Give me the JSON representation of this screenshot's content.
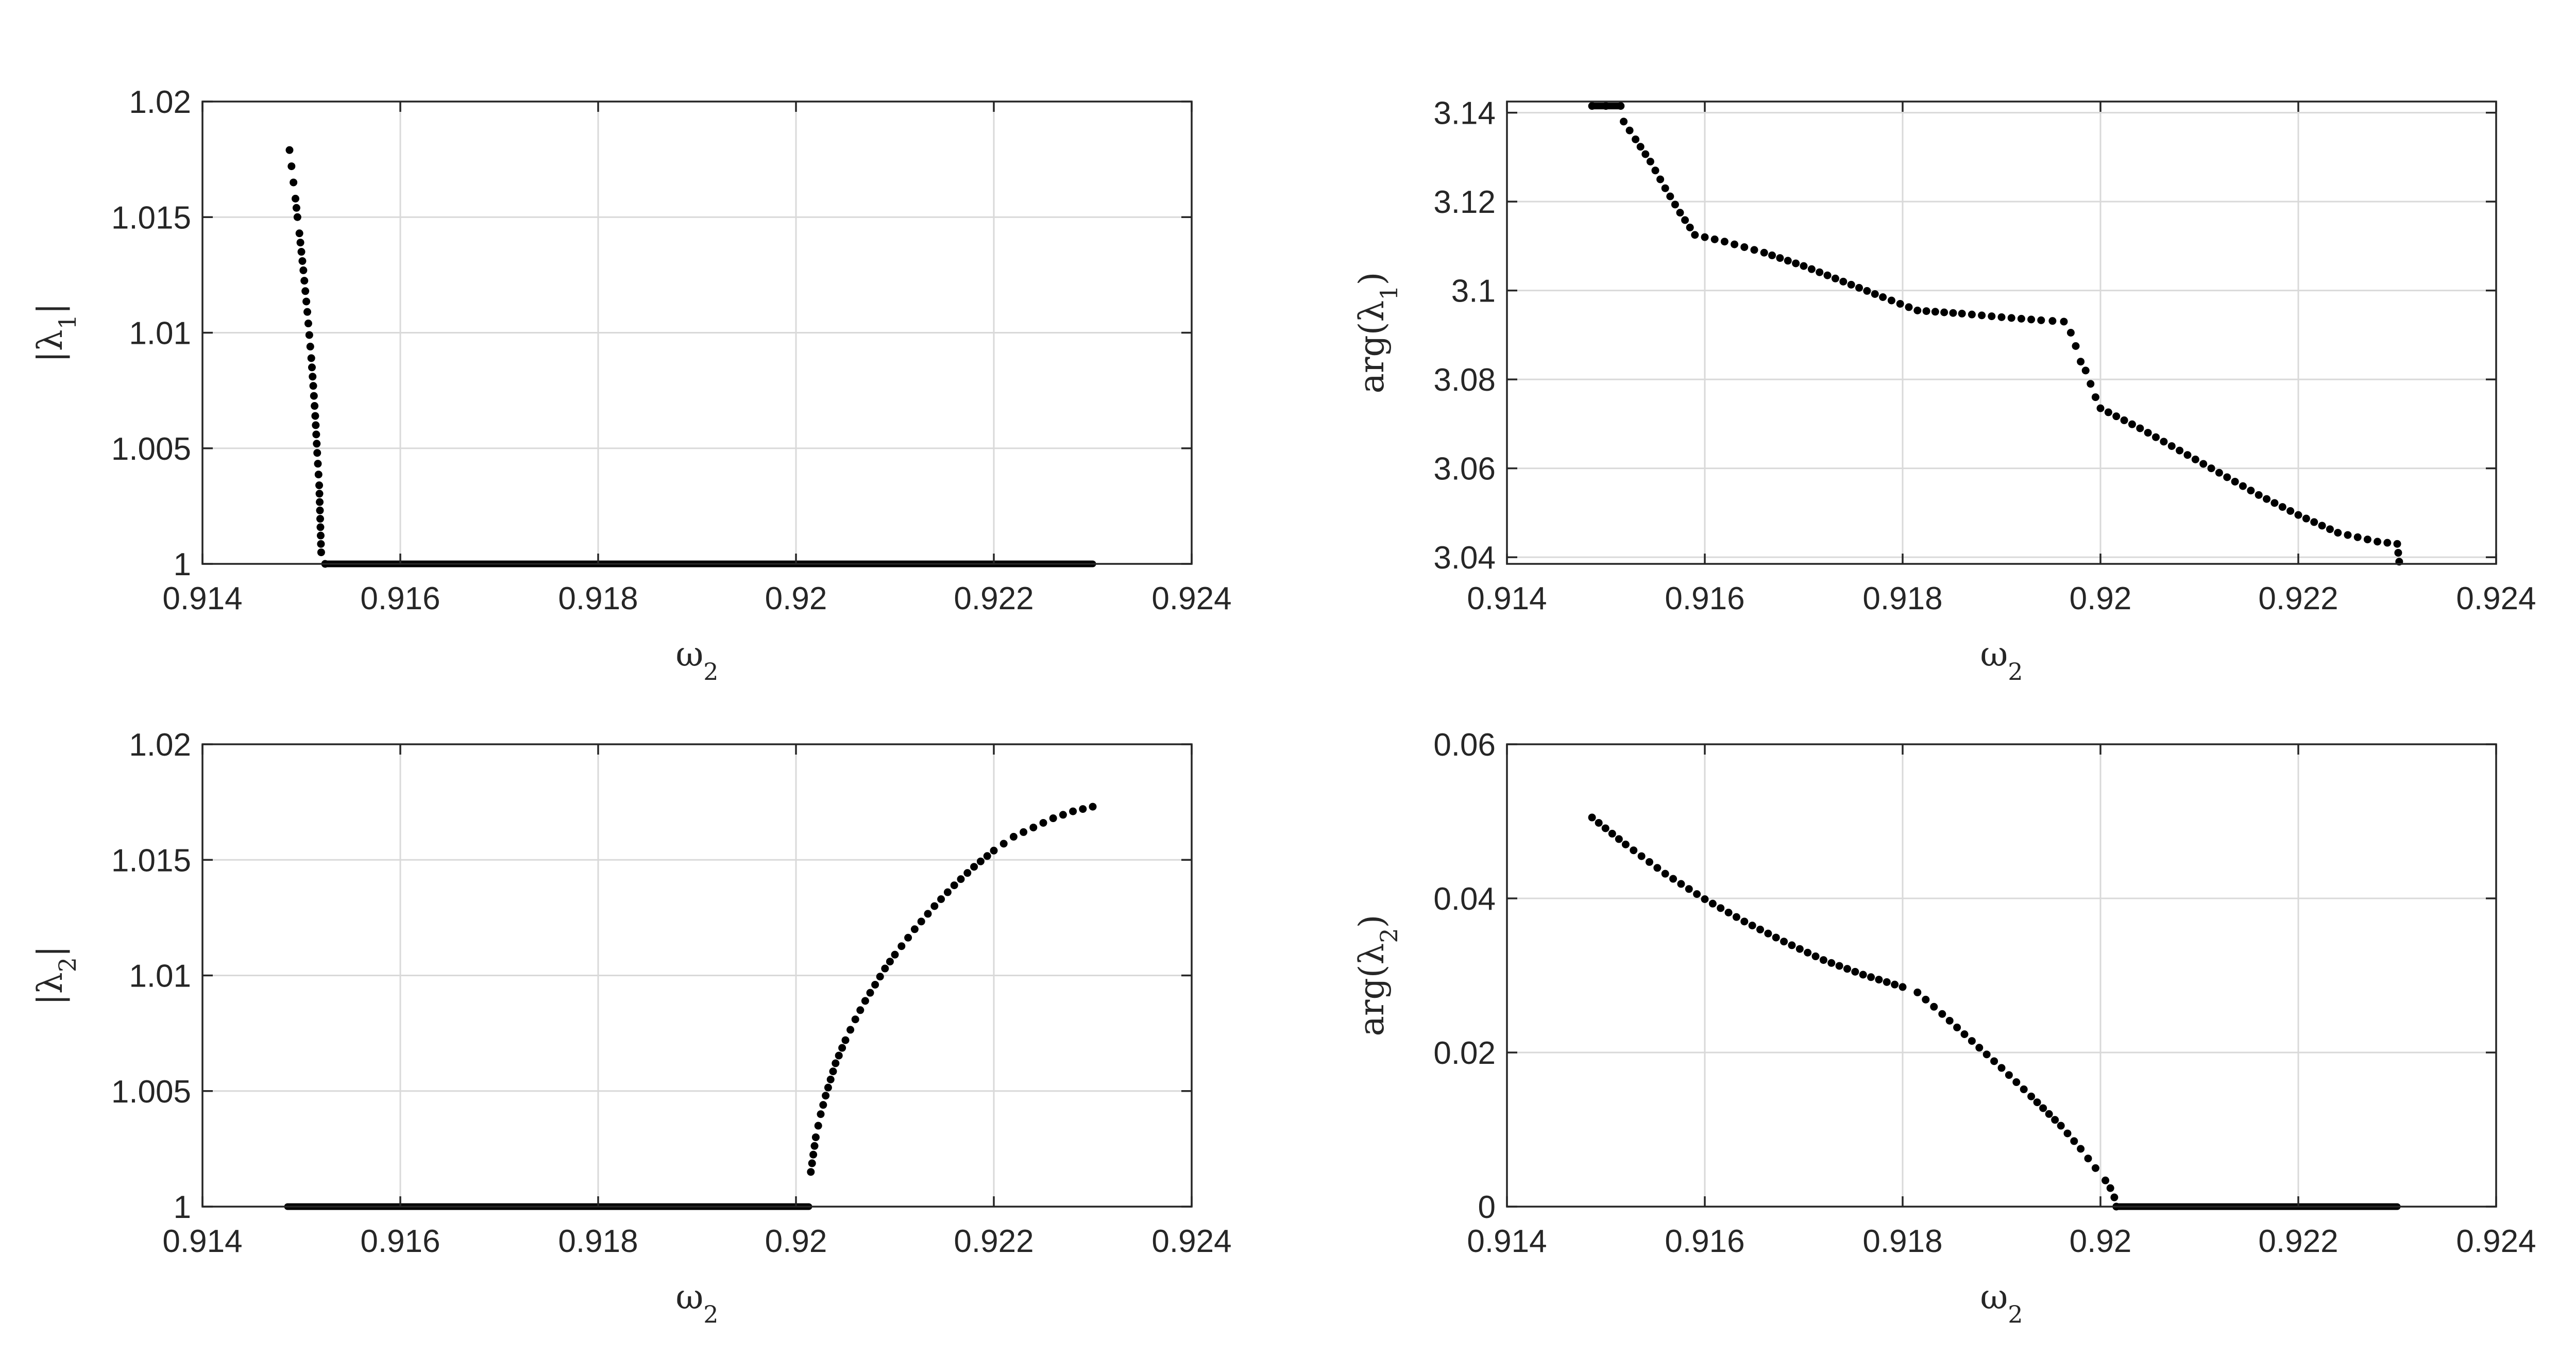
{
  "figure": {
    "marker_color": "#000000",
    "grid": true
  },
  "chart_data": [
    {
      "id": "mag1",
      "type": "scatter",
      "title": "",
      "xlabel": "ω",
      "xlabel_sub": "2",
      "ylabel": "|λ1|",
      "ylabel_parts": [
        "|λ",
        "1",
        "|"
      ],
      "xlim": [
        0.914,
        0.924
      ],
      "ylim": [
        1,
        1.02
      ],
      "xticks": [
        0.914,
        0.916,
        0.918,
        0.92,
        0.922,
        0.924
      ],
      "xtick_labels": [
        "0.914",
        "0.916",
        "0.918",
        "0.92",
        "0.922",
        "0.924"
      ],
      "yticks": [
        1,
        1.005,
        1.01,
        1.015,
        1.02
      ],
      "ytick_labels": [
        "1",
        "1.005",
        "1.01",
        "1.015",
        "1.02"
      ],
      "series": [
        {
          "x": [
            0.91488,
            0.9149,
            0.91492,
            0.91494,
            0.91496,
            0.91498,
            0.915,
            0.91502,
            0.91504,
            0.91506,
            0.91508,
            0.9151,
            0.91512,
            0.91514,
            0.91516,
            0.91518,
            0.9152,
            0.91524
          ],
          "y": [
            1.0179,
            1.0172,
            1.0165,
            1.0158,
            1.015,
            1.0143,
            1.0135,
            1.0127,
            1.0118,
            1.0109,
            1.0099,
            1.0089,
            1.0077,
            1.0064,
            1.0048,
            1.0034,
            1.0005,
            1.0
          ],
          "segments": [
            {
              "x_start": 0.91524,
              "x_end": 0.923,
              "y_start": 1.0,
              "y_end": 1.0
            }
          ]
        }
      ]
    },
    {
      "id": "arg1",
      "type": "scatter",
      "title": "",
      "xlabel": "ω",
      "xlabel_sub": "2",
      "ylabel": "arg(λ1)",
      "ylabel_parts": [
        "arg(λ",
        "1",
        ")"
      ],
      "xlim": [
        0.914,
        0.924
      ],
      "ylim": [
        3.0385,
        3.1425
      ],
      "xticks": [
        0.914,
        0.916,
        0.918,
        0.92,
        0.922,
        0.924
      ],
      "xtick_labels": [
        "0.914",
        "0.916",
        "0.918",
        "0.92",
        "0.922",
        "0.924"
      ],
      "yticks": [
        3.04,
        3.06,
        3.08,
        3.1,
        3.12,
        3.14
      ],
      "ytick_labels": [
        "3.04",
        "3.06",
        "3.08",
        "3.1",
        "3.12",
        "3.14"
      ],
      "series": [
        {
          "x": [
            0.91486,
            0.915,
            0.91515,
            0.91518,
            0.9153,
            0.91545,
            0.9156,
            0.91575,
            0.9159,
            0.9162,
            0.9166,
            0.917,
            0.9174,
            0.9178,
            0.91815,
            0.9186,
            0.919,
            0.9194,
            0.91963,
            0.9197,
            0.91975,
            0.9198,
            0.91985,
            0.9199,
            0.91995,
            0.92,
            0.9204,
            0.9208,
            0.9212,
            0.9216,
            0.922,
            0.9224,
            0.9228,
            0.923,
            0.92302
          ],
          "y": [
            3.1415,
            3.1415,
            3.1415,
            3.138,
            3.134,
            3.129,
            3.123,
            3.1175,
            3.1125,
            3.111,
            3.1085,
            3.1055,
            3.102,
            3.0985,
            3.0955,
            3.0948,
            3.094,
            3.0933,
            3.093,
            3.0905,
            3.0875,
            3.084,
            3.082,
            3.079,
            3.076,
            3.0735,
            3.069,
            3.064,
            3.059,
            3.054,
            3.0495,
            3.0455,
            3.0435,
            3.043,
            3.039
          ],
          "segments": [
            {
              "x_start": 0.91486,
              "x_end": 0.91515,
              "y_start": 3.1415,
              "y_end": 3.1415
            }
          ]
        }
      ]
    },
    {
      "id": "mag2",
      "type": "scatter",
      "title": "",
      "xlabel": "ω",
      "xlabel_sub": "2",
      "ylabel": "|λ2|",
      "ylabel_parts": [
        "|λ",
        "2",
        "|"
      ],
      "xlim": [
        0.914,
        0.924
      ],
      "ylim": [
        1,
        1.02
      ],
      "xticks": [
        0.914,
        0.916,
        0.918,
        0.92,
        0.922,
        0.924
      ],
      "xtick_labels": [
        "0.914",
        "0.916",
        "0.918",
        "0.92",
        "0.922",
        "0.924"
      ],
      "yticks": [
        1,
        1.005,
        1.01,
        1.015,
        1.02
      ],
      "ytick_labels": [
        "1",
        "1.005",
        "1.01",
        "1.015",
        "1.02"
      ],
      "series": [
        {
          "x": [
            0.92015,
            0.9202,
            0.92025,
            0.9203,
            0.92035,
            0.9204,
            0.9205,
            0.9206,
            0.9207,
            0.9208,
            0.9209,
            0.921,
            0.9212,
            0.9214,
            0.9216,
            0.9218,
            0.922,
            0.9222,
            0.9224,
            0.9226,
            0.9228,
            0.923
          ],
          "y": [
            1.0015,
            1.003,
            1.004,
            1.0048,
            1.0055,
            1.0062,
            1.0072,
            1.0081,
            1.0089,
            1.0096,
            1.0103,
            1.0109,
            1.012,
            1.013,
            1.0139,
            1.0147,
            1.0154,
            1.016,
            1.0164,
            1.0168,
            1.0171,
            1.0173
          ],
          "segments": [
            {
              "x_start": 0.91486,
              "x_end": 0.92013,
              "y_start": 1.0,
              "y_end": 1.0
            }
          ]
        }
      ]
    },
    {
      "id": "arg2",
      "type": "scatter",
      "title": "",
      "xlabel": "ω",
      "xlabel_sub": "2",
      "ylabel": "arg(λ2)",
      "ylabel_parts": [
        "arg(λ",
        "2",
        ")"
      ],
      "xlim": [
        0.914,
        0.924
      ],
      "ylim": [
        0,
        0.06
      ],
      "xticks": [
        0.914,
        0.916,
        0.918,
        0.92,
        0.922,
        0.924
      ],
      "xtick_labels": [
        "0.914",
        "0.916",
        "0.918",
        "0.92",
        "0.922",
        "0.924"
      ],
      "yticks": [
        0,
        0.02,
        0.04,
        0.06
      ],
      "ytick_labels": [
        "0",
        "0.02",
        "0.04",
        "0.06"
      ],
      "series": [
        {
          "x": [
            0.91486,
            0.9152,
            0.9156,
            0.916,
            0.9164,
            0.9168,
            0.9172,
            0.9176,
            0.918,
            0.91815,
            0.9184,
            0.9187,
            0.919,
            0.9193,
            0.9196,
            0.9198,
            0.91995,
            0.92005,
            0.9201,
            0.92014,
            0.92016
          ],
          "y": [
            0.0505,
            0.047,
            0.0432,
            0.0399,
            0.037,
            0.0344,
            0.032,
            0.0301,
            0.0285,
            0.0278,
            0.025,
            0.0215,
            0.018,
            0.0143,
            0.0105,
            0.0075,
            0.005,
            0.0034,
            0.0024,
            0.0012,
            0.0
          ],
          "segments": [
            {
              "x_start": 0.92016,
              "x_end": 0.923,
              "y_start": 0.0,
              "y_end": 0.0
            }
          ]
        }
      ]
    }
  ]
}
